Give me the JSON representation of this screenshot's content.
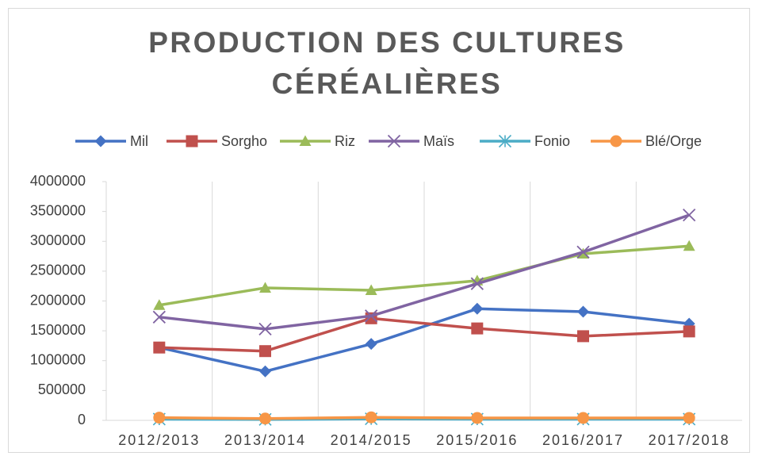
{
  "chart_data": {
    "type": "line",
    "title": "PRODUCTION DES CULTURES CÉRÉALIÈRES",
    "categories": [
      "2012/2013",
      "2013/2014",
      "2014/2015",
      "2015/2016",
      "2016/2017",
      "2017/2018"
    ],
    "series": [
      {
        "name": "Mil",
        "color": "#4472c4",
        "marker": "diamond",
        "values": [
          1220000,
          820000,
          1280000,
          1870000,
          1820000,
          1620000
        ]
      },
      {
        "name": "Sorgho",
        "color": "#c0504d",
        "marker": "square",
        "values": [
          1220000,
          1160000,
          1710000,
          1540000,
          1410000,
          1490000
        ]
      },
      {
        "name": "Riz",
        "color": "#9bbb59",
        "marker": "triangle",
        "values": [
          1930000,
          2220000,
          2180000,
          2340000,
          2790000,
          2920000
        ]
      },
      {
        "name": "Maïs",
        "color": "#8064a2",
        "marker": "x",
        "values": [
          1730000,
          1530000,
          1750000,
          2290000,
          2820000,
          3440000
        ]
      },
      {
        "name": "Fonio",
        "color": "#4bacc6",
        "marker": "star",
        "values": [
          20000,
          15000,
          25000,
          20000,
          20000,
          20000
        ]
      },
      {
        "name": "Blé/Orge",
        "color": "#f79646",
        "marker": "circle",
        "values": [
          45000,
          30000,
          50000,
          40000,
          40000,
          40000
        ]
      }
    ],
    "ylim": [
      0,
      4000000
    ],
    "yticks": [
      0,
      500000,
      1000000,
      1500000,
      2000000,
      2500000,
      3000000,
      3500000,
      4000000
    ],
    "grid": "x",
    "legend": "top"
  }
}
